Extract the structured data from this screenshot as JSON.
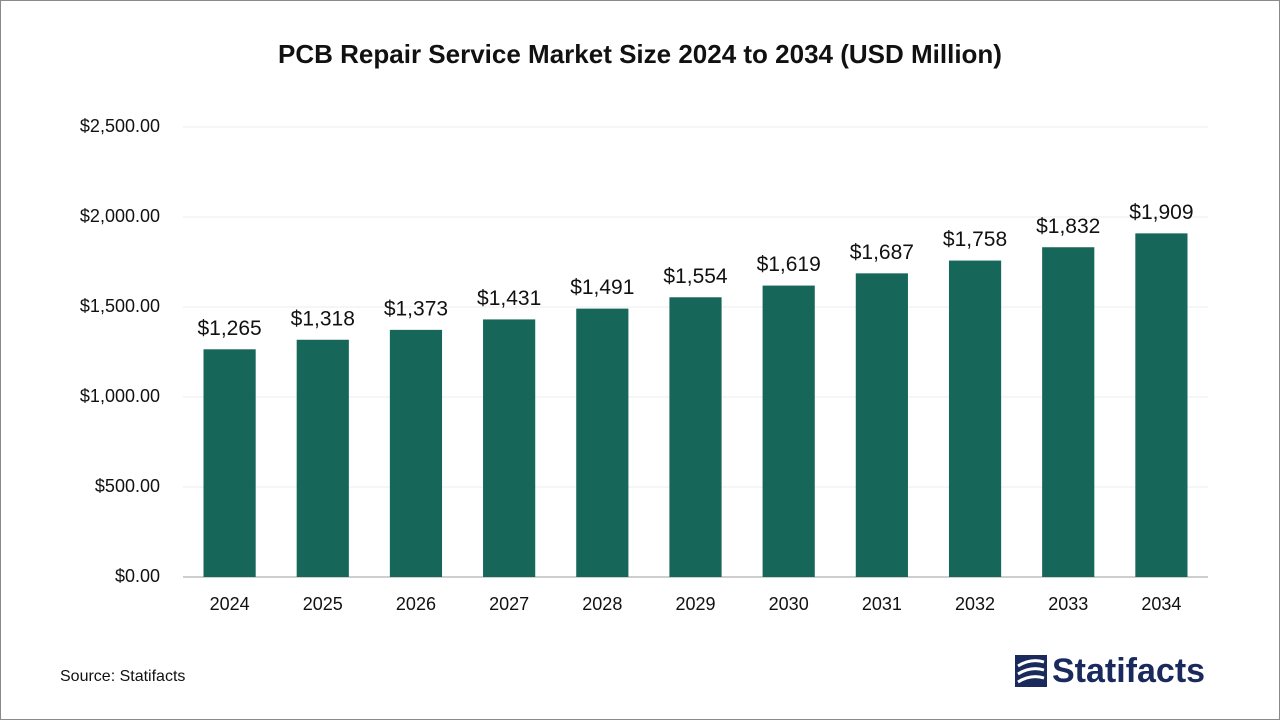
{
  "chart_data": {
    "type": "bar",
    "title": "PCB Repair Service Market Size 2024 to 2034 (USD Million)",
    "categories": [
      "2024",
      "2025",
      "2026",
      "2027",
      "2028",
      "2029",
      "2030",
      "2031",
      "2032",
      "2033",
      "2034"
    ],
    "values": [
      1265,
      1318,
      1373,
      1431,
      1491,
      1554,
      1619,
      1687,
      1758,
      1832,
      1909
    ],
    "value_labels": [
      "$1,265",
      "$1,318",
      "$1,373",
      "$1,431",
      "$1,491",
      "$1,554",
      "$1,619",
      "$1,687",
      "$1,758",
      "$1,832",
      "$1,909"
    ],
    "color": "#17665a",
    "ylim": [
      0,
      2500
    ],
    "yticks": [
      {
        "value": 0,
        "label": "$0.00"
      },
      {
        "value": 500,
        "label": "$500.00"
      },
      {
        "value": 1000,
        "label": "$1,000.00"
      },
      {
        "value": 1500,
        "label": "$1,500.00"
      },
      {
        "value": 2000,
        "label": "$2,000.00"
      },
      {
        "value": 2500,
        "label": "$2,500.00"
      }
    ],
    "grid": true,
    "source": "Source: Statifacts"
  },
  "brand": "Statifacts"
}
